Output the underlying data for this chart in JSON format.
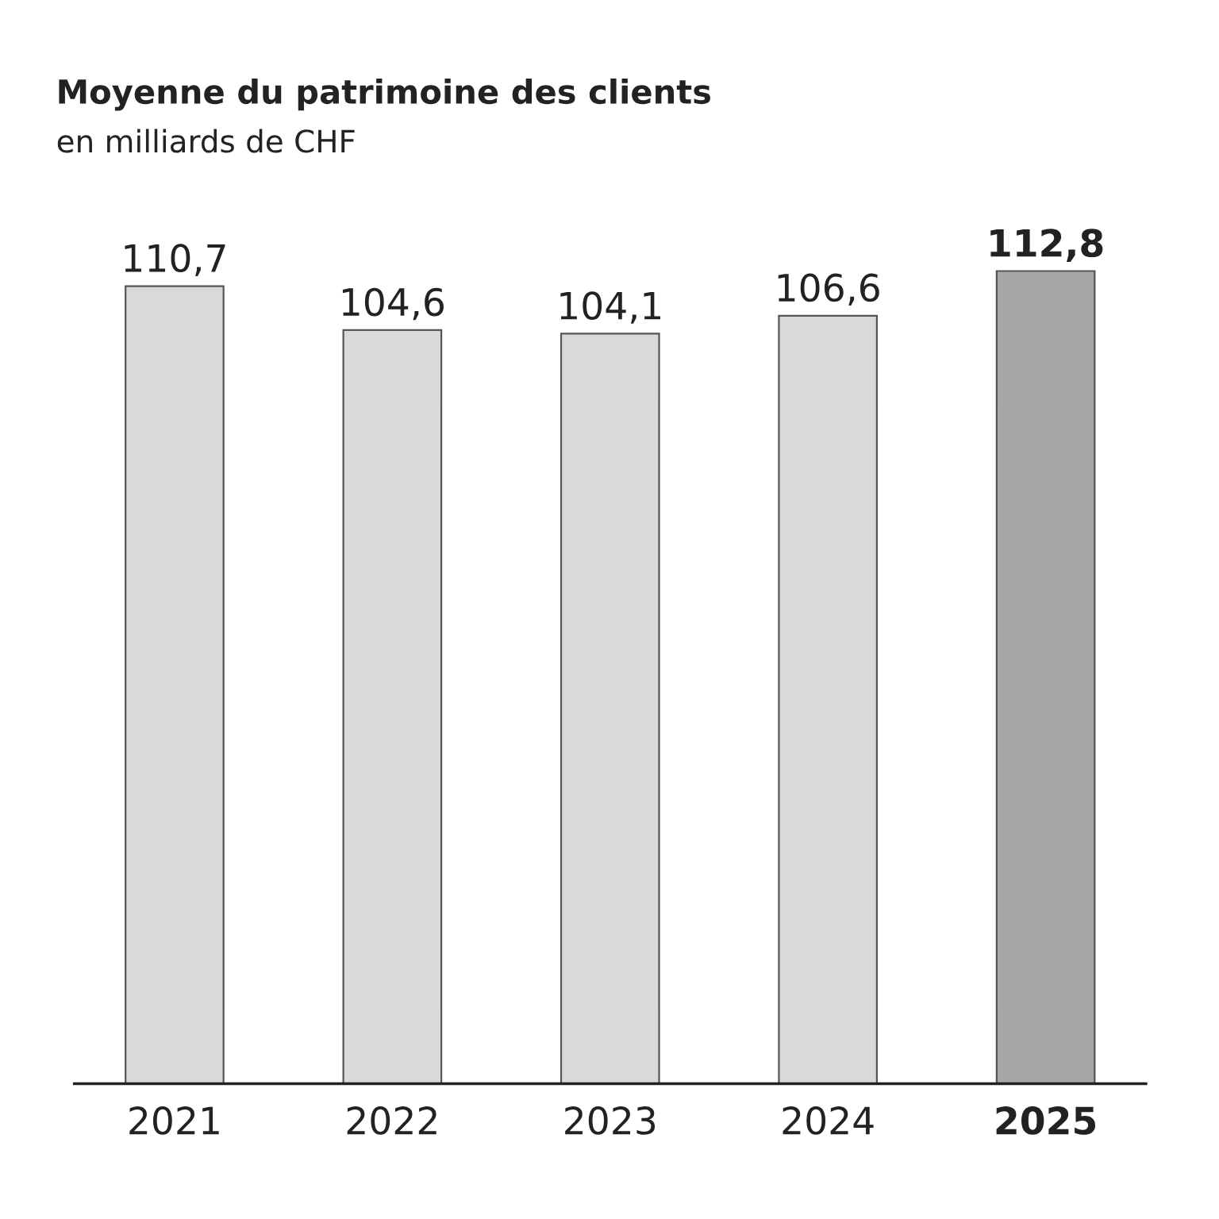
{
  "chart_data": {
    "type": "bar",
    "title": "Moyenne du patrimoine des clients",
    "subtitle": "en milliards de CHF",
    "categories": [
      "2021",
      "2022",
      "2023",
      "2024",
      "2025"
    ],
    "values": [
      110.7,
      104.6,
      104.1,
      106.6,
      112.8
    ],
    "colors": [
      "#d9d9d9",
      "#d9d9d9",
      "#d9d9d9",
      "#d9d9d9",
      "#a6a6a6"
    ],
    "value_labels": [
      "110,7",
      "104,6",
      "104,1",
      "106,6",
      "112,8"
    ],
    "grid": false,
    "legend": false
  }
}
